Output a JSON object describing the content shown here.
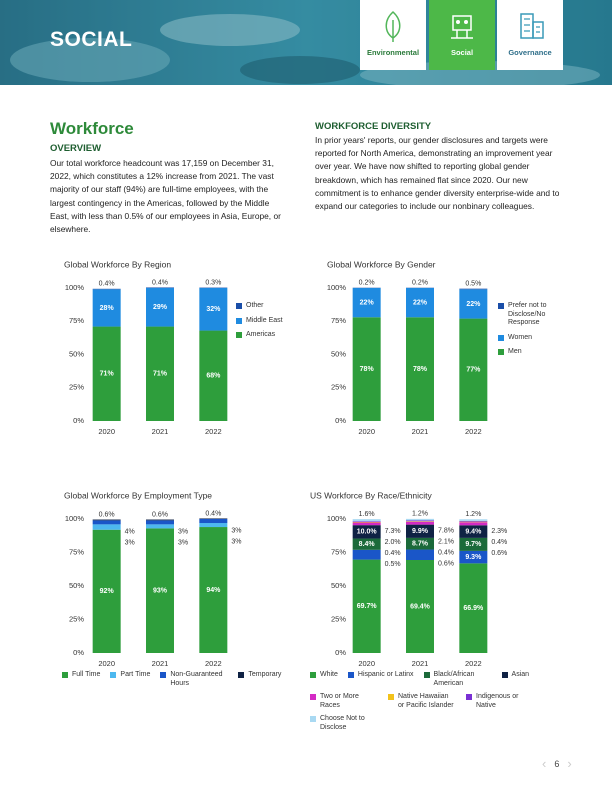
{
  "header": {
    "title": "SOCIAL",
    "tabs": [
      "Environmental",
      "Social",
      "Governance"
    ]
  },
  "workforce": {
    "heading": "Workforce",
    "subheading": "OVERVIEW",
    "text": "Our total workforce headcount was 17,159 on December 31, 2022, which constitutes a 12% increase from 2021. The vast majority of our staff (94%) are full-time employees, with the largest contingency in the Americas, followed by the Middle East, with less than 0.5% of our employees in Asia, Europe, or elsewhere."
  },
  "diversity": {
    "heading": "WORKFORCE DIVERSITY",
    "text": "In prior years' reports, our gender disclosures and targets were reported for North America, demonstrating an improvement year over year. We have now shifted to reporting global gender breakdown, which has remained flat since 2020. Our new commitment is to enhance gender diversity enterprise-wide and to expand our categories to include our nonbinary colleagues."
  },
  "chart_data": [
    {
      "type": "bar",
      "stacked": true,
      "title": "Global Workforce By Region",
      "categories": [
        "2020",
        "2021",
        "2022"
      ],
      "ylim": [
        0,
        100
      ],
      "yticks": [
        {
          "value": 0,
          "label": "0%"
        },
        {
          "value": 25,
          "label": "25%"
        },
        {
          "value": 50,
          "label": "50%"
        },
        {
          "value": 75,
          "label": "75%"
        },
        {
          "value": 100,
          "label": "100%"
        }
      ],
      "series": [
        {
          "name": "Americas",
          "color": "#2e9e3c",
          "values": [
            71,
            71,
            68
          ],
          "value_labels": [
            "71%",
            "71%",
            "68%"
          ]
        },
        {
          "name": "Middle East",
          "color": "#1f8be0",
          "values": [
            28,
            29,
            32
          ],
          "value_labels": [
            "28%",
            "29%",
            "32%"
          ]
        },
        {
          "name": "Other",
          "color": "#1a4ea8",
          "values": [
            0.4,
            0.4,
            0.3
          ],
          "value_labels": [
            "0.4%",
            "0.4%",
            "0.3%"
          ]
        }
      ]
    },
    {
      "type": "bar",
      "stacked": true,
      "title": "Global Workforce By Gender",
      "categories": [
        "2020",
        "2021",
        "2022"
      ],
      "ylim": [
        0,
        100
      ],
      "yticks": [
        {
          "value": 0,
          "label": "0%"
        },
        {
          "value": 25,
          "label": "25%"
        },
        {
          "value": 50,
          "label": "50%"
        },
        {
          "value": 75,
          "label": "75%"
        },
        {
          "value": 100,
          "label": "100%"
        }
      ],
      "series": [
        {
          "name": "Men",
          "color": "#2e9e3c",
          "values": [
            78,
            78,
            77
          ],
          "value_labels": [
            "78%",
            "78%",
            "77%"
          ]
        },
        {
          "name": "Women",
          "color": "#1f8be0",
          "values": [
            22,
            22,
            22
          ],
          "value_labels": [
            "22%",
            "22%",
            "22%"
          ]
        },
        {
          "name": "Prefer not to Disclose/No Response",
          "color": "#1a4ea8",
          "values": [
            0.2,
            0.2,
            0.5
          ],
          "value_labels": [
            "0.2%",
            "0.2%",
            "0.5%"
          ]
        }
      ]
    },
    {
      "type": "bar",
      "stacked": true,
      "title": "Global Workforce By Employment Type",
      "categories": [
        "2020",
        "2021",
        "2022"
      ],
      "ylim": [
        0,
        100
      ],
      "yticks": [
        {
          "value": 0,
          "label": "0%"
        },
        {
          "value": 25,
          "label": "25%"
        },
        {
          "value": 50,
          "label": "50%"
        },
        {
          "value": 75,
          "label": "75%"
        },
        {
          "value": 100,
          "label": "100%"
        }
      ],
      "series": [
        {
          "name": "Full Time",
          "color": "#2e9e3c",
          "values": [
            92,
            93,
            94
          ],
          "value_labels": [
            "92%",
            "93%",
            "94%"
          ]
        },
        {
          "name": "Part Time",
          "color": "#4db8ef",
          "values": [
            4,
            3,
            3
          ],
          "value_labels": [
            "4%",
            "3%",
            "3%"
          ]
        },
        {
          "name": "Non-Guaranteed Hours",
          "color": "#1a56c8",
          "values": [
            3,
            3,
            3
          ],
          "value_labels": [
            "3%",
            "3%",
            "3%"
          ]
        },
        {
          "name": "Temporary",
          "color": "#0f2244",
          "values": [
            0.6,
            0.6,
            0.4
          ],
          "value_labels": [
            "0.6%",
            "0.6%",
            "0.4%"
          ]
        }
      ]
    },
    {
      "type": "bar",
      "stacked": true,
      "title": "US Workforce By Race/Ethnicity",
      "categories": [
        "2020",
        "2021",
        "2022"
      ],
      "ylim": [
        0,
        100
      ],
      "yticks": [
        {
          "value": 0,
          "label": "0%"
        },
        {
          "value": 25,
          "label": "25%"
        },
        {
          "value": 50,
          "label": "50%"
        },
        {
          "value": 75,
          "label": "75%"
        },
        {
          "value": 100,
          "label": "100%"
        }
      ],
      "series": [
        {
          "name": "White",
          "color": "#2e9e3c",
          "values": [
            69.7,
            69.4,
            66.9
          ],
          "value_labels": [
            "69.7%",
            "69.4%",
            "66.9%"
          ]
        },
        {
          "name": "Hispanic or Latinx",
          "color": "#1a56c8",
          "values": [
            7.3,
            7.8,
            9.3
          ],
          "value_labels": [
            "7.3%",
            "7.8%",
            "9.3%"
          ]
        },
        {
          "name": "Black/African American",
          "color": "#1b6a3a",
          "values": [
            8.4,
            8.7,
            9.7
          ],
          "value_labels": [
            "8.4%",
            "8.7%",
            "9.7%"
          ]
        },
        {
          "name": "Asian",
          "color": "#0f2244",
          "values": [
            10.0,
            9.9,
            9.4
          ],
          "value_labels": [
            "10.0%",
            "9.9%",
            "9.4%"
          ]
        },
        {
          "name": "Two or More Races",
          "color": "#d42ac4",
          "values": [
            2.0,
            2.1,
            2.3
          ],
          "value_labels": [
            "2.0%",
            "2.1%",
            "2.3%"
          ]
        },
        {
          "name": "Native Hawaiian or Pacific Islander",
          "color": "#f2c21b",
          "values": [
            0.4,
            0.4,
            0.4
          ],
          "value_labels": [
            "0.4%",
            "0.4%",
            "0.4%"
          ]
        },
        {
          "name": "Indigenous or Native",
          "color": "#7a30d4",
          "values": [
            0.5,
            0.6,
            0.6
          ],
          "value_labels": [
            "0.5%",
            "0.6%",
            "0.6%"
          ]
        },
        {
          "name": "Choose Not to Disclose",
          "color": "#a9d9f2",
          "values": [
            1.6,
            1.2,
            1.2
          ],
          "value_labels": [
            "1.6%",
            "1.2%",
            "1.2%"
          ]
        }
      ]
    }
  ],
  "page_number": 6
}
